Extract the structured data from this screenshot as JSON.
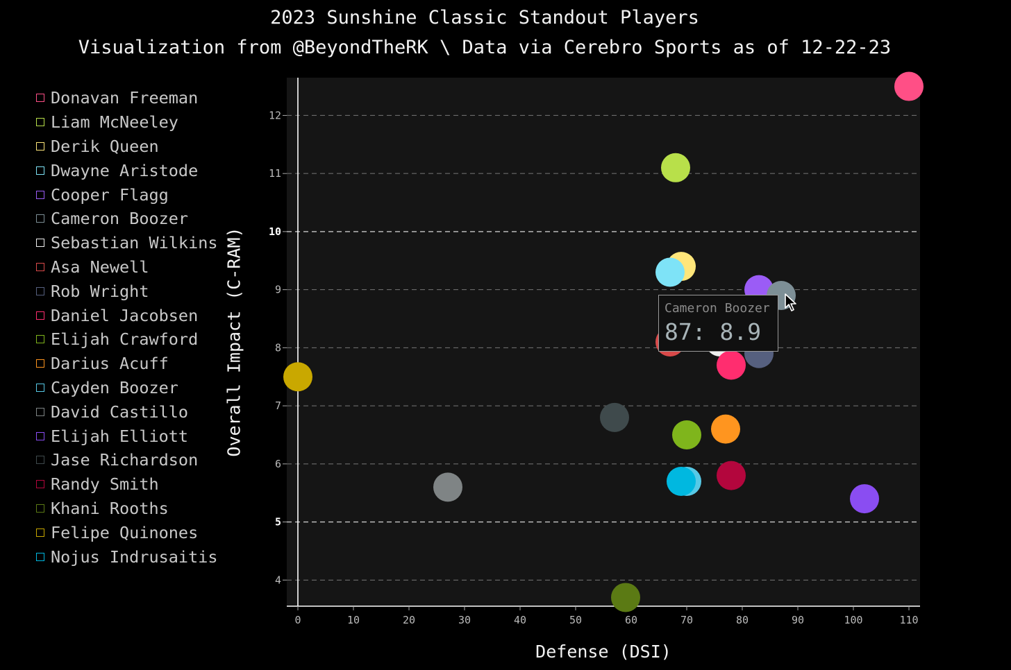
{
  "chart_data": {
    "type": "scatter",
    "title": "2023 Sunshine Classic Standout Players",
    "subtitle": "Visualization from @BeyondTheRK \\ Data via Cerebro Sports as of 12-22-23",
    "xlabel": "Defense (DSI)",
    "ylabel": "Overall Impact (C-RAM)",
    "xlim": [
      -2,
      112
    ],
    "ylim": [
      3.55,
      12.65
    ],
    "xticks": [
      0,
      10,
      20,
      30,
      40,
      50,
      60,
      70,
      80,
      90,
      100,
      110
    ],
    "yticks": [
      4,
      5,
      6,
      7,
      8,
      9,
      10,
      11,
      12
    ],
    "grid": "horizontal dashed",
    "legend_position": "left",
    "series": [
      {
        "name": "Donavan Freeman",
        "color": "#ff4f86",
        "x": 110,
        "y": 12.5
      },
      {
        "name": "Liam McNeeley",
        "color": "#b8e04a",
        "x": 68,
        "y": 11.1
      },
      {
        "name": "Derik Queen",
        "color": "#ffe67a",
        "x": 69,
        "y": 9.4
      },
      {
        "name": "Dwayne Aristode",
        "color": "#7ee3f7",
        "x": 67,
        "y": 9.3
      },
      {
        "name": "Cooper Flagg",
        "color": "#9b5cf6",
        "x": 83,
        "y": 9.0
      },
      {
        "name": "Cameron Boozer",
        "color": "#7d8f96",
        "x": 87,
        "y": 8.9
      },
      {
        "name": "Sebastian Wilkins",
        "color": "#f0f0f0",
        "x": 76,
        "y": 8.1
      },
      {
        "name": "Asa Newell",
        "color": "#d94a4a",
        "x": 67,
        "y": 8.1
      },
      {
        "name": "Rob Wright",
        "color": "#56607f",
        "x": 83,
        "y": 7.9
      },
      {
        "name": "Daniel Jacobsen",
        "color": "#ff2d6f",
        "x": 78,
        "y": 7.7
      },
      {
        "name": "Elijah Crawford",
        "color": "#7fb51c",
        "x": 70,
        "y": 6.5
      },
      {
        "name": "Darius Acuff",
        "color": "#ff951f",
        "x": 77,
        "y": 6.6
      },
      {
        "name": "Cayden Boozer",
        "color": "#57c9e6",
        "x": 70,
        "y": 5.7
      },
      {
        "name": "David Castillo",
        "color": "#7f8485",
        "x": 27,
        "y": 5.6
      },
      {
        "name": "Elijah Elliott",
        "color": "#8a4df2",
        "x": 102,
        "y": 5.4
      },
      {
        "name": "Jase Richardson",
        "color": "#3f4a4c",
        "x": 57,
        "y": 6.8
      },
      {
        "name": "Randy Smith",
        "color": "#b3063d",
        "x": 78,
        "y": 5.8
      },
      {
        "name": "Khani Rooths",
        "color": "#5b7a14",
        "x": 59,
        "y": 3.7
      },
      {
        "name": "Felipe Quinones",
        "color": "#c9a800",
        "x": 0,
        "y": 7.5
      },
      {
        "name": "Nojus Indrusaitis",
        "color": "#00b8e0",
        "x": 69,
        "y": 5.7
      }
    ]
  },
  "tooltip": {
    "name": "Cameron Boozer",
    "value": "87: 8.9"
  }
}
